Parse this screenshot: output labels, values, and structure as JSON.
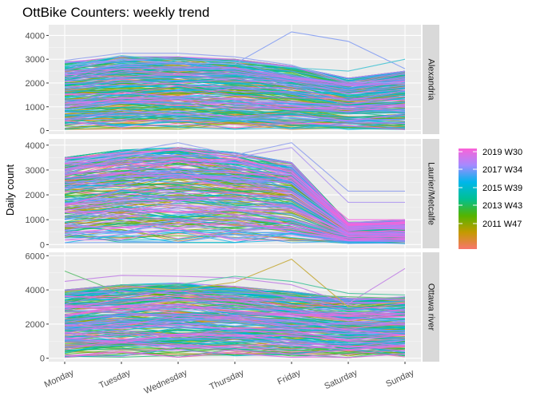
{
  "chart_data": {
    "type": "line",
    "title": "OttBike Counters: weekly trend",
    "xlabel": "",
    "ylabel": "Daily count",
    "categories": [
      "Monday",
      "Tuesday",
      "Wednesday",
      "Thursday",
      "Friday",
      "Saturday",
      "Sunday"
    ],
    "facets": [
      {
        "label": "Alexandria",
        "yticks": [
          0,
          1000,
          2000,
          3000,
          4000
        ],
        "ylim": [
          -150,
          4450
        ],
        "band": {
          "upper": [
            2900,
            3100,
            3100,
            3000,
            2700,
            2200,
            2500
          ],
          "lower": [
            100,
            120,
            120,
            120,
            100,
            80,
            80
          ]
        },
        "highlights": [
          {
            "values": [
              2700,
              3000,
              2850,
              2800,
              4150,
              3750,
              2600
            ],
            "color": "#8fa6f2"
          },
          {
            "values": [
              2950,
              3250,
              3250,
              3100,
              2750,
              2050,
              2000
            ],
            "color": "#9aa8ee"
          },
          {
            "values": [
              2700,
              3150,
              2950,
              2900,
              2650,
              2500,
              3000
            ],
            "color": "#58c8d6"
          }
        ]
      },
      {
        "label": "Laurier/Metcalfe",
        "yticks": [
          0,
          1000,
          2000,
          3000,
          4000
        ],
        "ylim": [
          -150,
          4250
        ],
        "band": {
          "upper": [
            3500,
            3800,
            3900,
            3700,
            3300,
            900,
            1000
          ],
          "lower": [
            150,
            170,
            170,
            170,
            150,
            60,
            60
          ]
        },
        "highlights": [
          {
            "values": [
              3300,
              3700,
              4100,
              3600,
              4100,
              2150,
              2150
            ],
            "color": "#9aa8ee"
          },
          {
            "values": [
              3300,
              3550,
              3850,
              3500,
              3900,
              1700,
              1700
            ],
            "color": "#b6a2f0"
          },
          {
            "values": [
              3450,
              3700,
              3800,
              3500,
              2900,
              1000,
              1000
            ],
            "color": "#f06fe0"
          }
        ]
      },
      {
        "label": "Ottawa river",
        "yticks": [
          0,
          2000,
          4000,
          6000
        ],
        "ylim": [
          -200,
          6200
        ],
        "band": {
          "upper": [
            4000,
            4300,
            4400,
            4200,
            3900,
            3500,
            3600
          ],
          "lower": [
            100,
            120,
            120,
            120,
            100,
            80,
            80
          ]
        },
        "highlights": [
          {
            "values": [
              4500,
              4850,
              4800,
              4700,
              4300,
              3200,
              5250
            ],
            "color": "#c58be6"
          },
          {
            "values": [
              5100,
              3800,
              4050,
              3900,
              3700,
              3600,
              3500
            ],
            "color": "#6ac37a"
          },
          {
            "values": [
              3900,
              4200,
              4000,
              4450,
              5800,
              3000,
              3300
            ],
            "color": "#c9b04a"
          },
          {
            "values": [
              3800,
              4300,
              4300,
              4800,
              4500,
              3800,
              3700
            ],
            "color": "#58c8a5"
          }
        ]
      }
    ],
    "legend": {
      "position": "right",
      "items": [
        "2019 W30",
        "2017 W34",
        "2015 W39",
        "2013 W43",
        "2011 W47"
      ],
      "gradient": [
        "#f8766d",
        "#c49a00",
        "#53b400",
        "#00c094",
        "#00b6eb",
        "#a58aff",
        "#fb61d7"
      ]
    },
    "grid": true,
    "panel_background": "#ebebeb",
    "strip_background": "#d9d9d9"
  }
}
